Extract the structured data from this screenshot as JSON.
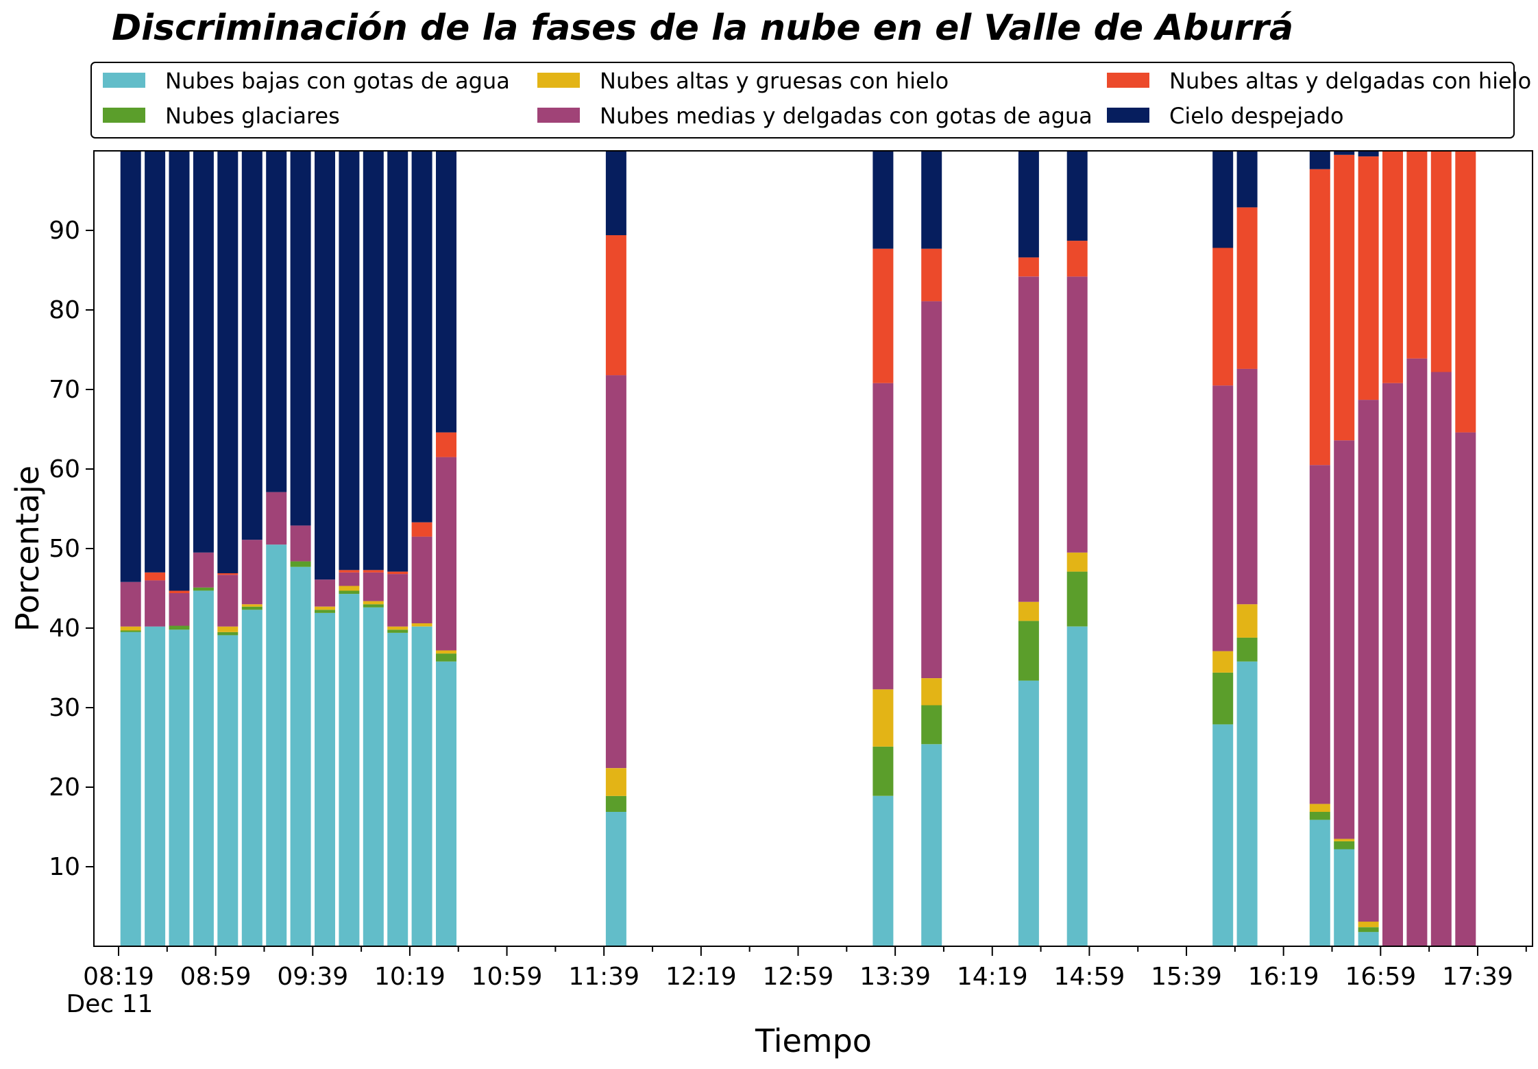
{
  "chart_data": {
    "type": "bar",
    "stacked": true,
    "title": "Discriminación de la fases de la nube en el Valle de Aburrá",
    "xlabel": "Tiempo",
    "ylabel": "Porcentaje",
    "date_label": "Dec 11",
    "ylim": [
      0,
      100
    ],
    "yticks": [
      10,
      20,
      30,
      40,
      50,
      60,
      70,
      80,
      90
    ],
    "xticks": [
      "08:19",
      "08:59",
      "09:39",
      "10:19",
      "10:59",
      "11:39",
      "12:19",
      "12:59",
      "13:39",
      "14:19",
      "14:59",
      "15:39",
      "16:19",
      "16:59",
      "17:39"
    ],
    "legend": {
      "position": "top",
      "columns": 3,
      "entries": [
        {
          "label": "Nubes bajas con gotas de agua",
          "color": "#62bdc9"
        },
        {
          "label": "Nubes glaciares",
          "color": "#5b9e2b"
        },
        {
          "label": "Nubes altas y gruesas con hielo",
          "color": "#e3b416"
        },
        {
          "label": "Nubes medias y delgadas con gotas de agua",
          "color": "#a04377"
        },
        {
          "label": "Nubes altas y delgadas con hielo",
          "color": "#ec4a2b"
        },
        {
          "label": "Cielo despejado",
          "color": "#061e5e"
        }
      ]
    },
    "categories": [
      "08:24",
      "08:34",
      "08:44",
      "08:54",
      "09:04",
      "09:14",
      "09:24",
      "09:34",
      "09:44",
      "09:54",
      "10:04",
      "10:14",
      "10:24",
      "10:34",
      "11:44",
      "13:34",
      "13:54",
      "14:34",
      "14:54",
      "15:54",
      "16:04",
      "16:34",
      "16:44",
      "16:54",
      "17:04",
      "17:14",
      "17:24",
      "17:34"
    ],
    "series": [
      {
        "name": "Nubes bajas con gotas de agua",
        "color": "#62bdc9",
        "values": [
          39.5,
          40.2,
          39.8,
          44.7,
          39.1,
          42.3,
          50.5,
          47.7,
          41.9,
          44.3,
          42.6,
          39.4,
          40.2,
          35.8,
          16.9,
          18.9,
          25.4,
          33.4,
          40.2,
          27.9,
          35.8,
          15.9,
          12.2,
          1.8,
          0,
          0,
          0,
          0
        ]
      },
      {
        "name": "Nubes glaciares",
        "color": "#5b9e2b",
        "values": [
          0.2,
          0,
          0.5,
          0.4,
          0.4,
          0.4,
          0,
          0.7,
          0.4,
          0.4,
          0.4,
          0.4,
          0,
          1.0,
          2.0,
          6.2,
          4.9,
          7.5,
          6.9,
          6.5,
          3.0,
          1.0,
          1.0,
          0.6,
          0,
          0,
          0,
          0
        ]
      },
      {
        "name": "Nubes altas y gruesas con hielo",
        "color": "#e3b416",
        "values": [
          0.5,
          0,
          0,
          0,
          0.7,
          0.3,
          0,
          0,
          0.4,
          0.6,
          0.4,
          0.4,
          0.4,
          0.4,
          3.5,
          7.2,
          3.4,
          2.4,
          2.4,
          2.7,
          4.2,
          1.0,
          0.3,
          0.7,
          0,
          0,
          0,
          0
        ]
      },
      {
        "name": "Nubes medias y delgadas con gotas de agua",
        "color": "#a04377",
        "values": [
          5.6,
          5.8,
          4.1,
          4.4,
          6.5,
          8.1,
          6.6,
          4.5,
          3.4,
          1.7,
          3.6,
          6.6,
          10.9,
          24.3,
          49.4,
          38.5,
          47.4,
          40.9,
          34.7,
          33.4,
          29.6,
          42.6,
          50.1,
          65.6,
          70.8,
          73.9,
          72.2,
          64.6
        ]
      },
      {
        "name": "Nubes altas y delgadas con hielo",
        "color": "#ec4a2b",
        "values": [
          0,
          1.0,
          0.3,
          0,
          0.2,
          0,
          0,
          0,
          0,
          0.3,
          0.3,
          0.3,
          1.8,
          3.1,
          17.6,
          16.9,
          6.6,
          2.4,
          4.5,
          17.3,
          20.3,
          37.2,
          35.9,
          30.6,
          29.2,
          26.1,
          27.8,
          35.4
        ]
      },
      {
        "name": "Cielo despejado",
        "color": "#061e5e",
        "values": [
          54.2,
          53.0,
          55.3,
          50.5,
          53.1,
          48.9,
          42.9,
          47.1,
          53.9,
          52.7,
          52.7,
          52.9,
          46.7,
          35.4,
          10.6,
          12.3,
          12.3,
          13.4,
          11.3,
          12.2,
          7.1,
          2.3,
          0.5,
          0.7,
          0,
          0,
          0,
          0
        ]
      }
    ]
  }
}
